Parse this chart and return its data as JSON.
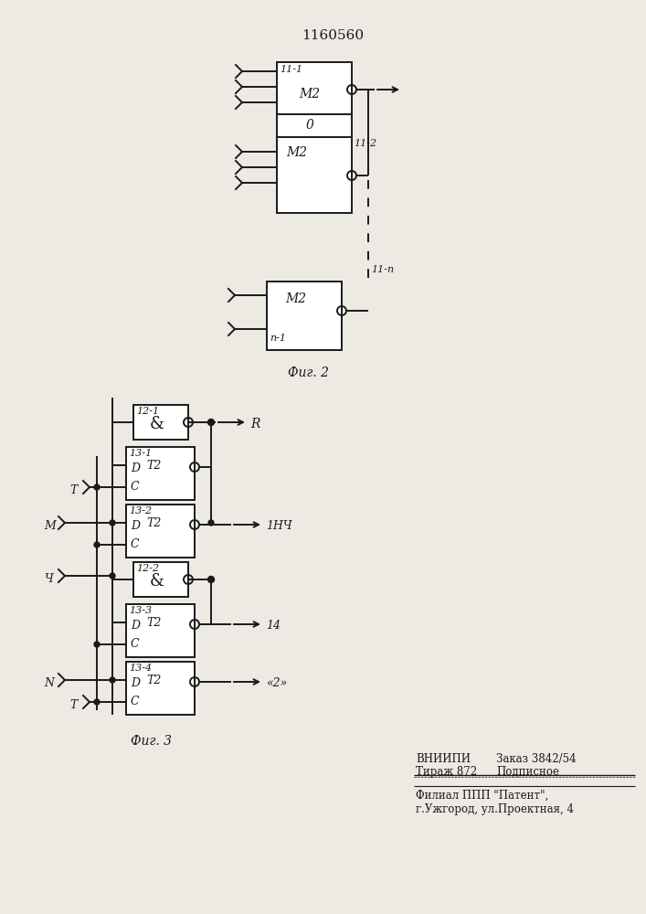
{
  "title": "1160560",
  "fig2_label": "Фиг. 2",
  "fig3_label": "Фиг. 3",
  "footer_line1_left": "ВНИИПИ",
  "footer_line1_right": "Заказ 3842/54",
  "footer_line2_left": "Тираж 872",
  "footer_line2_right": "Подписное",
  "footer_line3": "Филиал ППП \"Патент\",",
  "footer_line4": "г.Ужгород, ул.Проектная, 4",
  "bg_color": "#ede9e3",
  "line_color": "#1a1a1a",
  "text_color": "#1a1a1a"
}
